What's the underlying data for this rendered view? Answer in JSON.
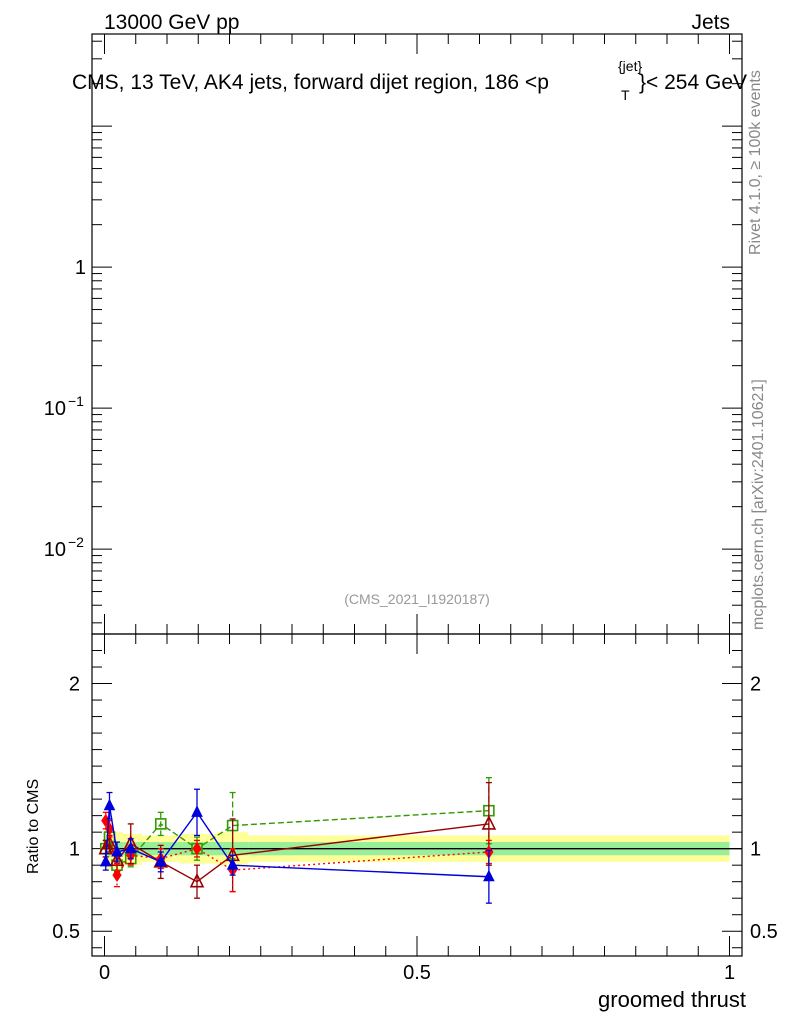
{
  "chart_data": {
    "type": "line",
    "header_left": "13000 GeV pp",
    "header_right": "Jets",
    "title_pre": "CMS, 13 TeV, AK4 jets, forward dijet region, 186 <p",
    "title_sup": "{jet}",
    "title_sub": "T",
    "title_post": "}< 254 GeV",
    "side_label_top": "Rivet 4.1.0, ≥ 100k events",
    "side_label_bottom": "mcplots.cern.ch [arXiv:2401.10621]",
    "watermark": "(CMS_2021_I1920187)",
    "xlabel": "groomed thrust",
    "ylabel_ratio": "Ratio to CMS",
    "xlim": [
      -0.02,
      1.02
    ],
    "main_ylim_log": [
      0.0025,
      45
    ],
    "ratio_ylim": [
      0.35,
      2.3
    ],
    "main_ticks": [
      {
        "value": 1,
        "label": "1",
        "sup": ""
      },
      {
        "value": 0.1,
        "label": "10",
        "sup": "−1"
      },
      {
        "value": 0.01,
        "label": "10",
        "sup": "−2"
      }
    ],
    "ratio_ticks": [
      {
        "value": 2,
        "label": "2"
      },
      {
        "value": 1,
        "label": "1"
      },
      {
        "value": 0.5,
        "label": "0.5"
      }
    ],
    "x_ticks": [
      {
        "value": 0,
        "label": "0"
      },
      {
        "value": 0.5,
        "label": "0.5"
      },
      {
        "value": 1,
        "label": "1"
      }
    ],
    "bands": {
      "yellow": [
        {
          "x0": 0.0,
          "x1": 0.01,
          "lo": 0.87,
          "hi": 1.12
        },
        {
          "x0": 0.01,
          "x1": 0.03,
          "lo": 0.88,
          "hi": 1.1
        },
        {
          "x0": 0.03,
          "x1": 0.06,
          "lo": 0.9,
          "hi": 1.09
        },
        {
          "x0": 0.06,
          "x1": 0.12,
          "lo": 0.92,
          "hi": 1.08
        },
        {
          "x0": 0.12,
          "x1": 0.18,
          "lo": 0.91,
          "hi": 1.09
        },
        {
          "x0": 0.18,
          "x1": 0.23,
          "lo": 0.9,
          "hi": 1.1
        },
        {
          "x0": 0.23,
          "x1": 1.0,
          "lo": 0.92,
          "hi": 1.08
        }
      ],
      "green": [
        {
          "x0": 0.0,
          "x1": 0.01,
          "lo": 0.95,
          "hi": 1.05
        },
        {
          "x0": 0.01,
          "x1": 0.03,
          "lo": 0.96,
          "hi": 1.04
        },
        {
          "x0": 0.03,
          "x1": 0.06,
          "lo": 0.96,
          "hi": 1.04
        },
        {
          "x0": 0.06,
          "x1": 0.12,
          "lo": 0.96,
          "hi": 1.04
        },
        {
          "x0": 0.12,
          "x1": 0.18,
          "lo": 0.96,
          "hi": 1.04
        },
        {
          "x0": 0.18,
          "x1": 0.23,
          "lo": 0.96,
          "hi": 1.04
        },
        {
          "x0": 0.23,
          "x1": 1.0,
          "lo": 0.96,
          "hi": 1.04
        }
      ]
    },
    "series": [
      {
        "name": "MC green (open squares)",
        "color": "#339900",
        "marker": "square-open",
        "dash": "6,3",
        "x": [
          0.002,
          0.008,
          0.02,
          0.042,
          0.09,
          0.148,
          0.205,
          0.615
        ],
        "y": [
          1.0,
          1.07,
          0.9,
          0.94,
          1.15,
          1.0,
          1.14,
          1.23
        ],
        "err": [
          0.05,
          0.05,
          0.06,
          0.05,
          0.07,
          0.07,
          0.2,
          0.2
        ]
      },
      {
        "name": "MC dark red (open triangles)",
        "color": "#990000",
        "marker": "triangle-open",
        "dash": "",
        "x": [
          0.002,
          0.008,
          0.02,
          0.042,
          0.09,
          0.148,
          0.205,
          0.615
        ],
        "y": [
          1.0,
          1.03,
          0.93,
          1.03,
          0.92,
          0.8,
          0.96,
          1.15
        ],
        "err": [
          0.05,
          0.05,
          0.07,
          0.12,
          0.1,
          0.1,
          0.22,
          0.25
        ]
      },
      {
        "name": "MC red (diamonds)",
        "color": "#ff0000",
        "marker": "diamond",
        "dash": "2,3",
        "x": [
          0.002,
          0.008,
          0.02,
          0.042,
          0.09,
          0.148,
          0.205,
          0.615
        ],
        "y": [
          1.17,
          1.12,
          0.84,
          0.96,
          0.94,
          1.0,
          0.87,
          0.98
        ],
        "err": [
          0.05,
          0.05,
          0.07,
          0.06,
          0.06,
          0.05,
          0.13,
          0.07
        ]
      },
      {
        "name": "MC blue (triangles)",
        "color": "#0000dd",
        "marker": "triangle",
        "dash": "",
        "x": [
          0.002,
          0.008,
          0.02,
          0.042,
          0.09,
          0.148,
          0.205,
          0.615
        ],
        "y": [
          0.92,
          1.26,
          0.98,
          1.0,
          0.92,
          1.22,
          0.9,
          0.83
        ],
        "err": [
          0.05,
          0.08,
          0.06,
          0.06,
          0.06,
          0.14,
          0.06,
          0.16
        ]
      }
    ]
  }
}
